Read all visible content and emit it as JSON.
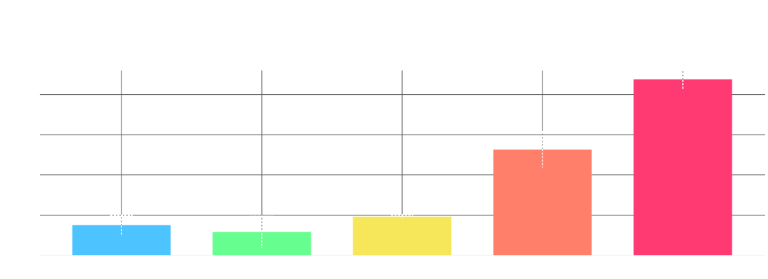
{
  "chart_data": {
    "type": "bar",
    "categories": [
      "",
      "",
      "",
      "",
      ""
    ],
    "values": [
      0.75,
      0.58,
      0.96,
      2.63,
      4.38
    ],
    "colors": [
      "#4dc3ff",
      "#66ff8f",
      "#f5e65a",
      "#ff7f6a",
      "#ff3a73"
    ],
    "error_bars": [
      0.25,
      0.4,
      0.05,
      0.45,
      0.25
    ],
    "ylim": [
      0,
      4.6
    ],
    "y_gridlines": [
      1,
      2,
      3,
      4
    ],
    "grid": true,
    "title": "",
    "xlabel": "",
    "ylabel": ""
  }
}
